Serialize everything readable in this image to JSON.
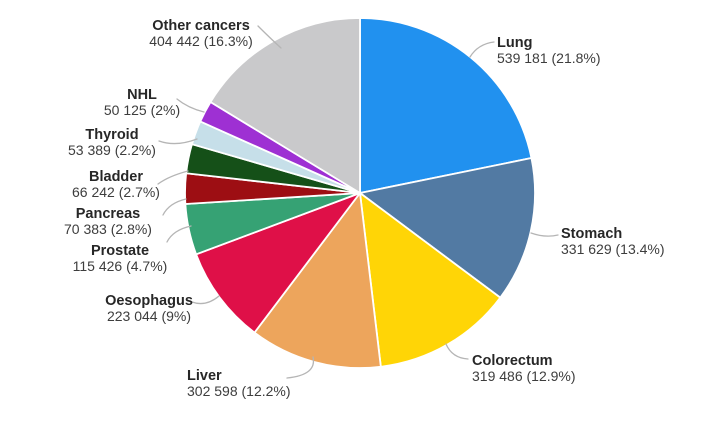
{
  "figure": {
    "background_color": "#ffffff",
    "text_color": "#3d3d3d",
    "leader_line_color": "#b5b5b5",
    "slice_divider_color": "#ffffff"
  },
  "chart_data": {
    "type": "pie",
    "title": "",
    "start_angle_deg": 0,
    "direction": "clockwise",
    "legend_position": "labels-with-leader-lines",
    "slices": [
      {
        "label": "Lung",
        "value": 539181,
        "pct": 21.8,
        "value_display": "539 181 (21.8%)",
        "color": "#2191ef"
      },
      {
        "label": "Stomach",
        "value": 331629,
        "pct": 13.4,
        "value_display": "331 629 (13.4%)",
        "color": "#527aa3"
      },
      {
        "label": "Colorectum",
        "value": 319486,
        "pct": 12.9,
        "value_display": "319 486 (12.9%)",
        "color": "#ffd506"
      },
      {
        "label": "Liver",
        "value": 302598,
        "pct": 12.2,
        "value_display": "302 598 (12.2%)",
        "color": "#eda55c"
      },
      {
        "label": "Oesophagus",
        "value": 223044,
        "pct": 9,
        "value_display": "223 044 (9%)",
        "color": "#df1048"
      },
      {
        "label": "Prostate",
        "value": 115426,
        "pct": 4.7,
        "value_display": "115 426 (4.7%)",
        "color": "#36a274"
      },
      {
        "label": "Pancreas",
        "value": 70383,
        "pct": 2.8,
        "value_display": "70 383 (2.8%)",
        "color": "#9d0e13"
      },
      {
        "label": "Bladder",
        "value": 66242,
        "pct": 2.7,
        "value_display": "66 242 (2.7%)",
        "color": "#155018"
      },
      {
        "label": "Thyroid",
        "value": 53389,
        "pct": 2.2,
        "value_display": "53 389 (2.2%)",
        "color": "#c6dfe9"
      },
      {
        "label": "NHL",
        "value": 50125,
        "pct": 2,
        "value_display": "50 125 (2%)",
        "color": "#9e30d3"
      },
      {
        "label": "Other cancers",
        "value": 404442,
        "pct": 16.3,
        "value_display": "404 442 (16.3%)",
        "color": "#c9c9cb"
      }
    ]
  }
}
